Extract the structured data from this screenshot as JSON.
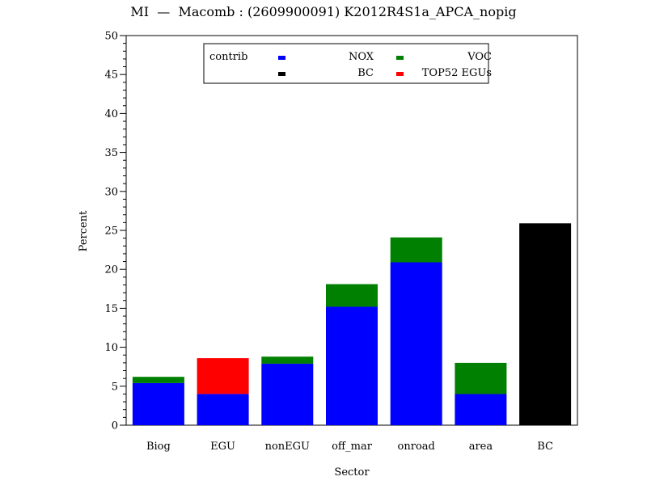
{
  "chart_data": {
    "type": "bar",
    "stacked": true,
    "title": "MI  —  Macomb : (2609900091) K2012R4S1a_APCA_nopig",
    "xlabel": "Sector",
    "ylabel": "Percent",
    "ylim": [
      0,
      50
    ],
    "yticks": [
      0,
      5,
      10,
      15,
      20,
      25,
      30,
      35,
      40,
      45,
      50
    ],
    "categories": [
      "Biog",
      "EGU",
      "nonEGU",
      "off_mar",
      "onroad",
      "area",
      "BC"
    ],
    "series": [
      {
        "name": "NOX",
        "color": "#0000ff",
        "values": [
          5.4,
          4.0,
          7.9,
          15.2,
          20.9,
          4.0,
          0
        ]
      },
      {
        "name": "VOC",
        "color": "#008000",
        "values": [
          0.8,
          0,
          0.9,
          2.9,
          3.2,
          4.0,
          0
        ]
      },
      {
        "name": "BC",
        "color": "#000000",
        "values": [
          0,
          0,
          0,
          0,
          0,
          0,
          25.9
        ]
      },
      {
        "name": "TOP52 EGUs",
        "color": "#ff0000",
        "values": [
          0,
          4.6,
          0,
          0,
          0,
          0,
          0
        ]
      }
    ],
    "legend": {
      "title": "contrib",
      "placement": "top-center",
      "order": [
        "NOX",
        "VOC",
        "BC",
        "TOP52 EGUs"
      ]
    },
    "grid": false
  }
}
